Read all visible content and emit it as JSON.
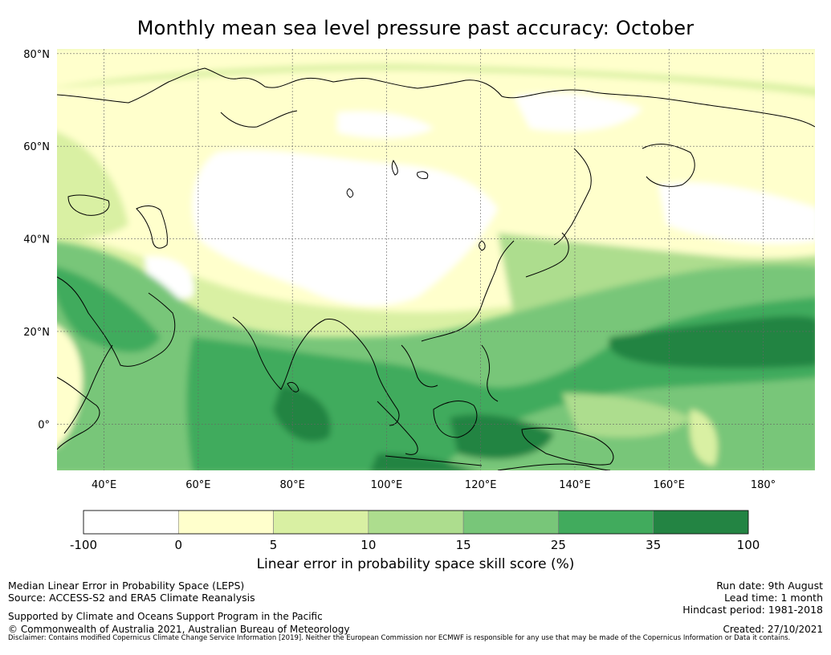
{
  "title": "Monthly mean sea level pressure past accuracy: October",
  "map": {
    "lat_labels": [
      "80°N",
      "60°N",
      "40°N",
      "20°N",
      "0°"
    ],
    "lat_values": [
      80,
      60,
      40,
      20,
      0
    ],
    "lon_labels": [
      "40°E",
      "60°E",
      "80°E",
      "100°E",
      "120°E",
      "140°E",
      "160°E",
      "180°"
    ],
    "lon_values": [
      40,
      60,
      80,
      100,
      120,
      140,
      160,
      180
    ],
    "lon_range": [
      30,
      191
    ],
    "lat_range": [
      -10,
      81
    ]
  },
  "colorbar": {
    "title": "Linear error in probability space skill score (%)",
    "tick_labels": [
      "-100",
      "0",
      "5",
      "10",
      "15",
      "25",
      "35",
      "100"
    ],
    "colors": [
      "#ffffff",
      "#ffffcc",
      "#d9f0a3",
      "#addd8e",
      "#78c679",
      "#41ab5d",
      "#238443"
    ]
  },
  "footer": {
    "left": {
      "line1": "Median Linear Error in Probability Space (LEPS)",
      "line2": "Source: ACCESS-S2 and ERA5 Climate Reanalysis",
      "line3": "Supported by Climate and Oceans Support Program in the Pacific",
      "line4": "© Commonwealth of Australia 2021, Australian Bureau of Meteorology"
    },
    "right": {
      "run_date": "Run date: 9th August",
      "lead_time": "Lead time: 1 month",
      "hindcast": "Hindcast period: 1981-2018",
      "created": "Created: 27/10/2021"
    },
    "disclaimer": "Disclaimer: Contains modified Copernicus Climate Change Service Information [2019]. Neither the European Commission nor ECMWF is responsible for any use that may be made of the Copernicus Information or Data it contains."
  }
}
